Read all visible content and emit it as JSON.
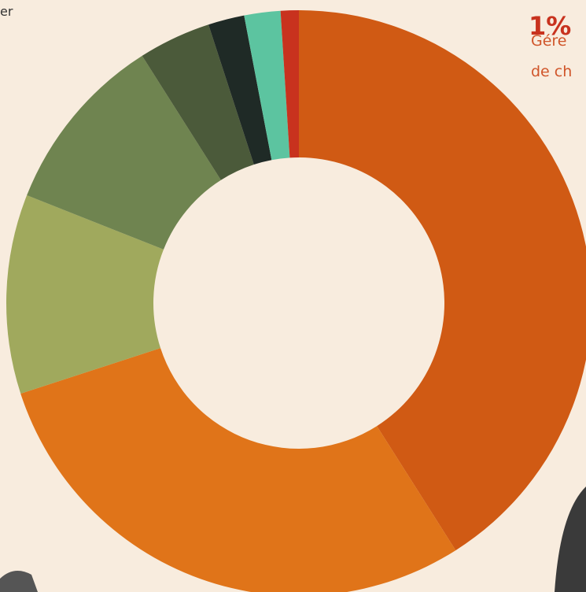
{
  "chart_data": {
    "type": "donut",
    "categories": [
      null,
      null,
      null,
      null,
      null,
      null,
      null,
      null
    ],
    "values": [
      41,
      29,
      11,
      10,
      4,
      2,
      2,
      1
    ],
    "colors": [
      "#d05a14",
      "#e07419",
      "#a0a95d",
      "#6f8450",
      "#4b5a3a",
      "#1f2a26",
      "#5cc4a0",
      "#c8321e"
    ],
    "annotations": [
      "er",
      "1%",
      "Gére",
      "de ch"
    ]
  }
}
